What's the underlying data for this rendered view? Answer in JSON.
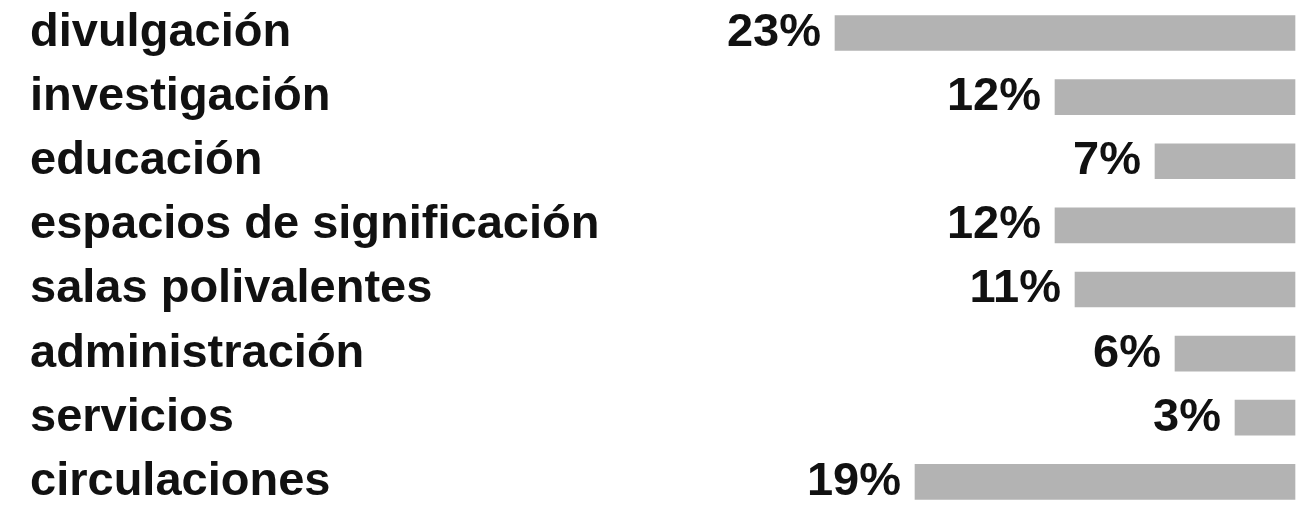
{
  "chart_data": {
    "type": "bar",
    "orientation": "horizontal",
    "categories": [
      "divulgación",
      "investigación",
      "educación",
      "espacios de significación",
      "salas polivalentes",
      "administración",
      "servicios",
      "circulaciones"
    ],
    "values": [
      23,
      12,
      7,
      12,
      11,
      6,
      3,
      19
    ],
    "value_labels": [
      "23%",
      "12%",
      "7%",
      "12%",
      "11%",
      "6%",
      "3%",
      "19%"
    ],
    "color": "#b3b3b3",
    "xlim": [
      23,
      0
    ],
    "tick_labels": "y"
  }
}
